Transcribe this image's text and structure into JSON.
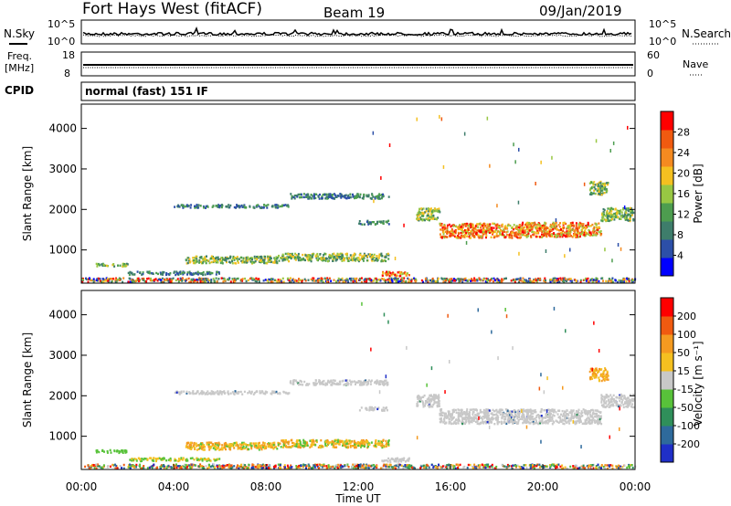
{
  "header": {
    "station": "Fort Hays West (fitACF)",
    "beam": "Beam 19",
    "date": "09/Jan/2019"
  },
  "panels": {
    "noise": {
      "left_label": "N.Sky",
      "right_label": "N.Search",
      "left_ticks": [
        "10^5",
        "10^0"
      ],
      "right_ticks": [
        "10^5",
        "10^0"
      ]
    },
    "freq": {
      "left_label_1": "Freq.",
      "left_label_2": "[MHz]",
      "left_ticks": [
        "18",
        "8"
      ],
      "right_label": "Nave",
      "right_ticks": [
        "60",
        "0"
      ]
    },
    "cpid": {
      "label": "CPID",
      "text": "normal (fast) 151 IF"
    }
  },
  "colors": {
    "power": [
      "#0000ff",
      "#2c4fa8",
      "#3e7d6b",
      "#4d9d4f",
      "#98c743",
      "#f4c020",
      "#f48a20",
      "#f05a10",
      "#ff0000"
    ],
    "velocity": [
      "#1f2fc8",
      "#2e6a9c",
      "#2f8f5a",
      "#58c23a",
      "#c8c8c8",
      "#f4c020",
      "#f49a20",
      "#f05a10",
      "#ff0000"
    ]
  },
  "chart_data": [
    {
      "type": "heatmap",
      "title": "Power",
      "ylabel": "Slant Range [km]",
      "colorbar_label": "Power [dB]",
      "colorbar_ticks": [
        "28",
        "24",
        "20",
        "16",
        "12",
        "8",
        "4"
      ],
      "ylim": [
        180,
        4600
      ],
      "y_ticks": [
        "1000",
        "2000",
        "3000",
        "4000"
      ],
      "xlim": [
        0,
        24
      ],
      "bands": [
        {
          "x_start": 0.6,
          "x_end": 2.0,
          "y": 650,
          "height": 70,
          "level": "mid"
        },
        {
          "x_start": 2.0,
          "x_end": 6.0,
          "y": 450,
          "height": 80,
          "level": "low"
        },
        {
          "x_start": 4.5,
          "x_end": 8.5,
          "y": 780,
          "height": 180,
          "level": "mid"
        },
        {
          "x_start": 8.5,
          "x_end": 13.3,
          "y": 840,
          "height": 190,
          "level": "mid"
        },
        {
          "x_start": 13.0,
          "x_end": 14.2,
          "y": 430,
          "height": 110,
          "level": "high"
        },
        {
          "x_start": 4.0,
          "x_end": 9.0,
          "y": 2100,
          "height": 80,
          "level": "low"
        },
        {
          "x_start": 9.0,
          "x_end": 13.3,
          "y": 2350,
          "height": 120,
          "level": "low"
        },
        {
          "x_start": 12.0,
          "x_end": 13.3,
          "y": 1700,
          "height": 90,
          "level": "low"
        },
        {
          "x_start": 14.5,
          "x_end": 15.5,
          "y": 1900,
          "height": 300,
          "level": "mid"
        },
        {
          "x_start": 15.5,
          "x_end": 19.0,
          "y": 1500,
          "height": 360,
          "level": "high"
        },
        {
          "x_start": 19.0,
          "x_end": 22.5,
          "y": 1520,
          "height": 360,
          "level": "high"
        },
        {
          "x_start": 22.5,
          "x_end": 23.9,
          "y": 1900,
          "height": 320,
          "level": "mid"
        },
        {
          "x_start": 22.0,
          "x_end": 22.8,
          "y": 2550,
          "height": 320,
          "level": "mid"
        },
        {
          "x_start": 0.0,
          "x_end": 24.0,
          "y": 280,
          "height": 100,
          "level": "mixed"
        }
      ]
    },
    {
      "type": "heatmap",
      "title": "Velocity",
      "ylabel": "Slant Range [km]",
      "colorbar_label": "Velocity [m s⁻¹]",
      "colorbar_ticks": [
        "200",
        "100",
        "50",
        "15",
        "-15",
        "-50",
        "-100",
        "-200"
      ],
      "ylim": [
        180,
        4600
      ],
      "y_ticks": [
        "1000",
        "2000",
        "3000",
        "4000"
      ],
      "xlim": [
        0,
        24
      ],
      "x_ticks": [
        "00:00",
        "04:00",
        "08:00",
        "12:00",
        "16:00",
        "20:00",
        "00:00"
      ],
      "xlabel": "Time UT",
      "bands": [
        {
          "x_start": 0.6,
          "x_end": 2.0,
          "y": 650,
          "height": 70,
          "level": "g"
        },
        {
          "x_start": 2.0,
          "x_end": 6.0,
          "y": 450,
          "height": 80,
          "level": "yg"
        },
        {
          "x_start": 4.5,
          "x_end": 8.5,
          "y": 780,
          "height": 180,
          "level": "y"
        },
        {
          "x_start": 8.5,
          "x_end": 13.3,
          "y": 840,
          "height": 190,
          "level": "y"
        },
        {
          "x_start": 13.0,
          "x_end": 14.2,
          "y": 430,
          "height": 110,
          "level": "gray"
        },
        {
          "x_start": 4.0,
          "x_end": 9.0,
          "y": 2100,
          "height": 80,
          "level": "gray"
        },
        {
          "x_start": 9.0,
          "x_end": 13.3,
          "y": 2350,
          "height": 120,
          "level": "gray"
        },
        {
          "x_start": 12.0,
          "x_end": 13.3,
          "y": 1700,
          "height": 90,
          "level": "gray"
        },
        {
          "x_start": 14.5,
          "x_end": 15.5,
          "y": 1900,
          "height": 300,
          "level": "gray"
        },
        {
          "x_start": 15.5,
          "x_end": 22.5,
          "y": 1510,
          "height": 360,
          "level": "gray"
        },
        {
          "x_start": 22.5,
          "x_end": 23.9,
          "y": 1900,
          "height": 320,
          "level": "gray"
        },
        {
          "x_start": 22.0,
          "x_end": 22.8,
          "y": 2550,
          "height": 320,
          "level": "yo"
        },
        {
          "x_start": 0.0,
          "x_end": 24.0,
          "y": 280,
          "height": 100,
          "level": "mixedv"
        }
      ]
    }
  ]
}
